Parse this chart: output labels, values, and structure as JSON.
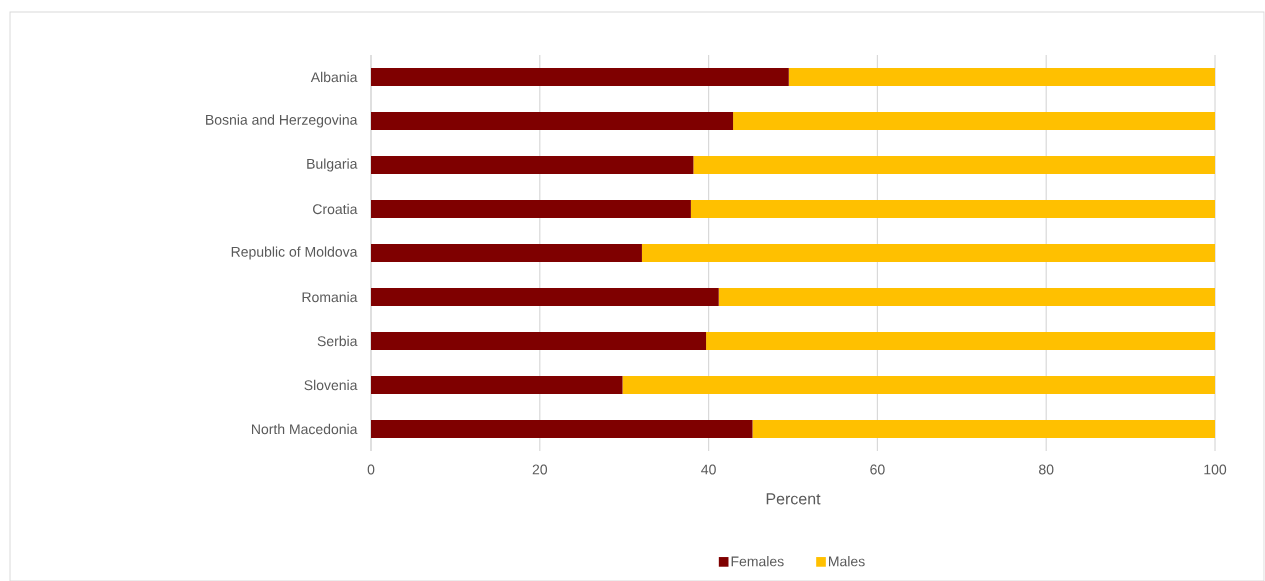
{
  "chart_data": {
    "type": "bar",
    "orientation": "horizontal",
    "stacked": true,
    "categories": [
      "Albania",
      "Bosnia and Herzegovina",
      "Bulgaria",
      "Croatia",
      "Republic of Moldova",
      "Romania",
      "Serbia",
      "Slovenia",
      "North Macedonia"
    ],
    "series": [
      {
        "name": "Females",
        "color": "#7f0000",
        "values": [
          49.5,
          42.9,
          38.2,
          37.9,
          32.1,
          41.2,
          39.7,
          29.8,
          45.2
        ]
      },
      {
        "name": "Males",
        "color": "#ffc000",
        "values": [
          50.5,
          57.1,
          61.8,
          62.1,
          67.9,
          58.8,
          60.3,
          70.2,
          54.8
        ]
      }
    ],
    "xlabel": "Percent",
    "xlim": [
      0,
      100
    ],
    "xticks": [
      0,
      20,
      40,
      60,
      80,
      100
    ],
    "grid": "x",
    "legend": "bottom"
  }
}
